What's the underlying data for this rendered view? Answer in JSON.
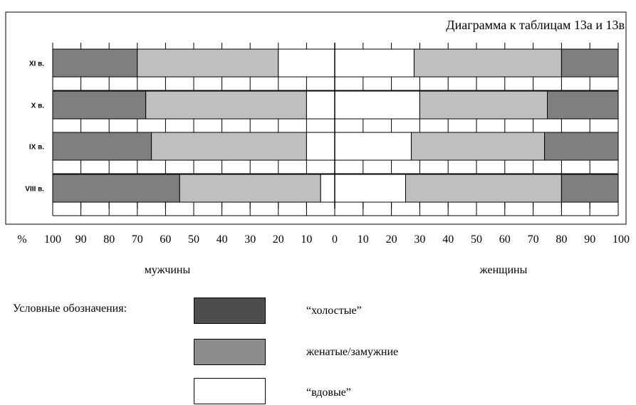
{
  "chart_data": {
    "type": "bar",
    "title": "Диаграмма к таблицам 13а и 13в",
    "orientation": "horizontal",
    "stacked": true,
    "categories": [
      "XI в.",
      "X в.",
      "IX в.",
      "VIII в."
    ],
    "panels": [
      {
        "name": "мужчины",
        "xlim": [
          100,
          0
        ],
        "series": [
          {
            "name": "“холостые”",
            "values": [
              30,
              33,
              35,
              45
            ]
          },
          {
            "name": "женатые/замужние",
            "values": [
              50,
              57,
              55,
              50
            ]
          },
          {
            "name": "“вдовые”",
            "values": [
              20,
              10,
              10,
              5
            ]
          }
        ]
      },
      {
        "name": "женщины",
        "xlim": [
          0,
          100
        ],
        "series": [
          {
            "name": "“вдовые”",
            "values": [
              28,
              30,
              27,
              25
            ]
          },
          {
            "name": "женатые/замужние",
            "values": [
              52,
              45,
              47,
              55
            ]
          },
          {
            "name": "“холостые”",
            "values": [
              20,
              25,
              26,
              20
            ]
          }
        ]
      }
    ],
    "x_ticks_left": [
      "100",
      "90",
      "80",
      "70",
      "60",
      "50",
      "40",
      "30",
      "20",
      "10",
      "0"
    ],
    "x_ticks_right": [
      "10",
      "20",
      "30",
      "40",
      "50",
      "60",
      "70",
      "80",
      "90",
      "100"
    ],
    "x_unit_label": "%"
  },
  "legend": {
    "heading": "Условные обозначения:",
    "items": [
      {
        "label": "“холостые”",
        "color": "#4d4d4d"
      },
      {
        "label": "женатые/замужние",
        "color": "#8c8c8c"
      },
      {
        "label": "“вдовые”",
        "color": "#ffffff"
      }
    ]
  },
  "colors": {
    "single_bar": "#7f7f7f",
    "married_bar": "#bfbfbf",
    "widowed_bar": "#ffffff",
    "outline": "#000000"
  }
}
